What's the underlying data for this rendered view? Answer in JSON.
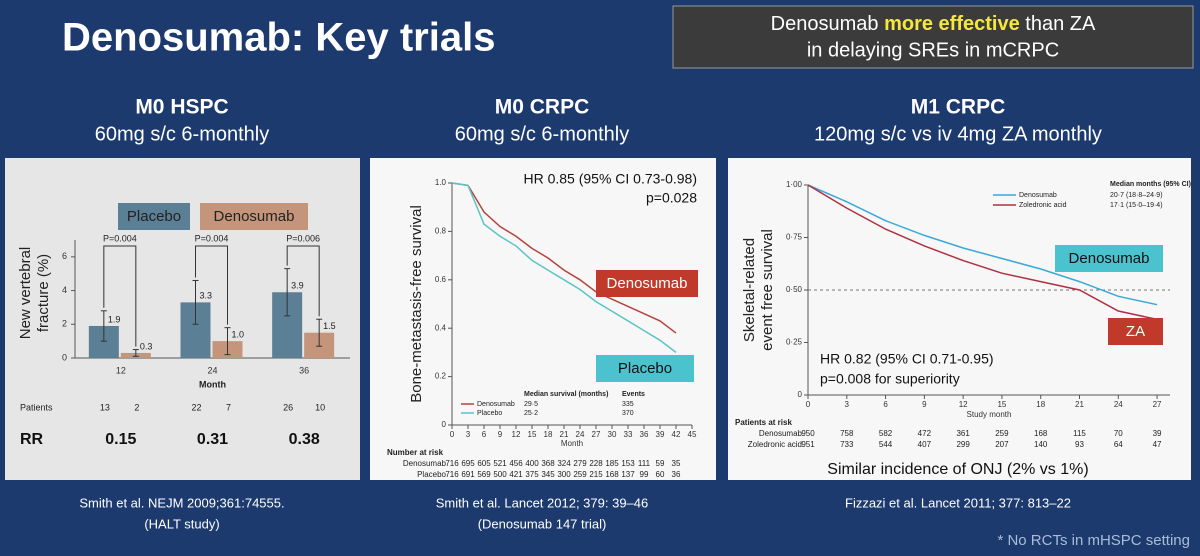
{
  "title": "Denosumab: Key trials",
  "callout": {
    "parts": [
      "Denosumab",
      "more effective",
      "than ZA"
    ],
    "line2": "in delaying SREs in mCRPC"
  },
  "panels": [
    {
      "heading": "M0 HSPC",
      "subheading": "60mg s/c 6-monthly",
      "citation": [
        "Smith et al. NEJM 2009;361:74555.",
        "(HALT study)"
      ]
    },
    {
      "heading": "M0 CRPC",
      "subheading": "60mg s/c 6-monthly",
      "citation": [
        "Smith et al. Lancet 2012; 379: 39–46",
        "(Denosumab 147 trial)"
      ]
    },
    {
      "heading": "M1 CRPC",
      "subheading": "120mg s/c vs iv 4mg ZA monthly",
      "citation": [
        "Fizzazi et al. Lancet 2011; 377: 813–22"
      ]
    }
  ],
  "footnote": "* No RCTs in mHSPC setting",
  "chart_data": [
    {
      "type": "bar",
      "y_label": [
        "New vertebral",
        "fracture (%)"
      ],
      "x_label": "Month",
      "categories": [
        "12",
        "24",
        "36"
      ],
      "series": [
        {
          "name": "Placebo",
          "color": "#5b7f95",
          "values": [
            1.9,
            3.3,
            3.9
          ],
          "value_labels": [
            "1.9",
            "3.3",
            "3.9"
          ],
          "errors": [
            0.9,
            1.3,
            1.4
          ]
        },
        {
          "name": "Denosumab",
          "color": "#c4957a",
          "values": [
            0.3,
            1.0,
            1.5
          ],
          "value_labels": [
            "0.3",
            "1.0",
            "1.5"
          ],
          "errors": [
            0.2,
            0.8,
            0.8
          ]
        }
      ],
      "p_values": [
        "P=0.004",
        "P=0.004",
        "P=0.006"
      ],
      "ylim": [
        0,
        7
      ],
      "yticks": [
        0,
        2,
        4,
        6
      ],
      "patients": {
        "label": "Patients",
        "values": [
          [
            13,
            2
          ],
          [
            22,
            7
          ],
          [
            26,
            10
          ]
        ]
      },
      "rr": {
        "label": "RR",
        "values": [
          0.15,
          0.31,
          0.38
        ]
      }
    },
    {
      "type": "line",
      "y_label": "Bone-metastasis-free survival",
      "x_label": "Month",
      "x": [
        0,
        3,
        6,
        9,
        12,
        15,
        18,
        21,
        24,
        27,
        30,
        33,
        36,
        39,
        42
      ],
      "series": [
        {
          "name": "Denosumab",
          "color": "#b5433c",
          "values": [
            1.0,
            0.99,
            0.88,
            0.82,
            0.78,
            0.73,
            0.69,
            0.64,
            0.6,
            0.55,
            0.52,
            0.49,
            0.46,
            0.43,
            0.38
          ],
          "median": "29·5",
          "events": 335
        },
        {
          "name": "Placebo",
          "color": "#5bc4c4",
          "values": [
            1.0,
            0.99,
            0.83,
            0.78,
            0.74,
            0.68,
            0.64,
            0.6,
            0.56,
            0.51,
            0.47,
            0.43,
            0.39,
            0.35,
            0.3
          ],
          "median": "25·2",
          "events": 370
        }
      ],
      "legend_headers": [
        "Median survival (months)",
        "Events"
      ],
      "annotations": [
        {
          "text": "HR 0.85 (95% CI 0.73-0.98)"
        },
        {
          "text": "p=0.028"
        },
        {
          "text": "Denosumab",
          "color": "#c0392b"
        },
        {
          "text": "Placebo",
          "color": "#4bc3cf"
        }
      ],
      "xlim": [
        0,
        45
      ],
      "xticks": [
        0,
        3,
        6,
        9,
        12,
        15,
        18,
        21,
        24,
        27,
        30,
        33,
        36,
        39,
        42,
        45
      ],
      "ylim": [
        0,
        1
      ],
      "yticks": [
        0,
        0.2,
        0.4,
        0.6,
        0.8,
        {
          "value": 1,
          "label": "1.0"
        }
      ],
      "at_risk": {
        "label": "Number at risk",
        "rows": [
          {
            "name": "Denosumab",
            "values": [
              716,
              695,
              605,
              521,
              456,
              400,
              368,
              324,
              279,
              228,
              185,
              153,
              111,
              59,
              35
            ]
          },
          {
            "name": "Placebo",
            "values": [
              716,
              691,
              569,
              500,
              421,
              375,
              345,
              300,
              259,
              215,
              168,
              137,
              99,
              60,
              36
            ]
          }
        ]
      }
    },
    {
      "type": "line",
      "y_label": [
        "Skeletal-related",
        "event free survival"
      ],
      "x_label": "Study month",
      "x": [
        0,
        3,
        6,
        9,
        12,
        15,
        18,
        21,
        24,
        27
      ],
      "series": [
        {
          "name": "Denosumab",
          "color": "#3aa8d8",
          "values": [
            1.0,
            0.92,
            0.83,
            0.76,
            0.7,
            0.65,
            0.6,
            0.54,
            0.47,
            0.43
          ],
          "median": "20·7 (18·8–24·9)"
        },
        {
          "name": "Zoledronic acid",
          "color": "#b03040",
          "values": [
            1.0,
            0.89,
            0.79,
            0.71,
            0.64,
            0.58,
            0.54,
            0.5,
            0.4,
            0.36
          ],
          "median": "17·1 (15·0–19·4)"
        }
      ],
      "legend_title": "Median months (95% CI)",
      "reference_line": 0.5,
      "annotations": [
        {
          "text": "Denosumab",
          "color": "#4bc3cf"
        },
        {
          "text": "ZA",
          "color": "#c0392b"
        },
        {
          "text": "HR 0.82 (95% CI 0.71-0.95)"
        },
        {
          "text": "p=0.008 for superiority"
        }
      ],
      "xlim": [
        0,
        28
      ],
      "xticks": [
        0,
        3,
        6,
        9,
        12,
        15,
        18,
        21,
        24,
        27
      ],
      "ylim": [
        0,
        1
      ],
      "yticks": [
        0,
        {
          "value": 0.25,
          "label": "0·25"
        },
        {
          "value": 0.5,
          "label": "0·50"
        },
        {
          "value": 0.75,
          "label": "0·75"
        },
        {
          "value": 1,
          "label": "1·00"
        }
      ],
      "at_risk": {
        "label": "Patients at risk",
        "rows": [
          {
            "name": "Denosumab",
            "values": [
              950,
              758,
              582,
              472,
              361,
              259,
              168,
              115,
              70,
              39
            ]
          },
          {
            "name": "Zoledronic acid",
            "values": [
              951,
              733,
              544,
              407,
              299,
              207,
              140,
              93,
              64,
              47
            ]
          }
        ]
      },
      "caption": "Similar incidence of ONJ (2% vs 1%)"
    }
  ]
}
